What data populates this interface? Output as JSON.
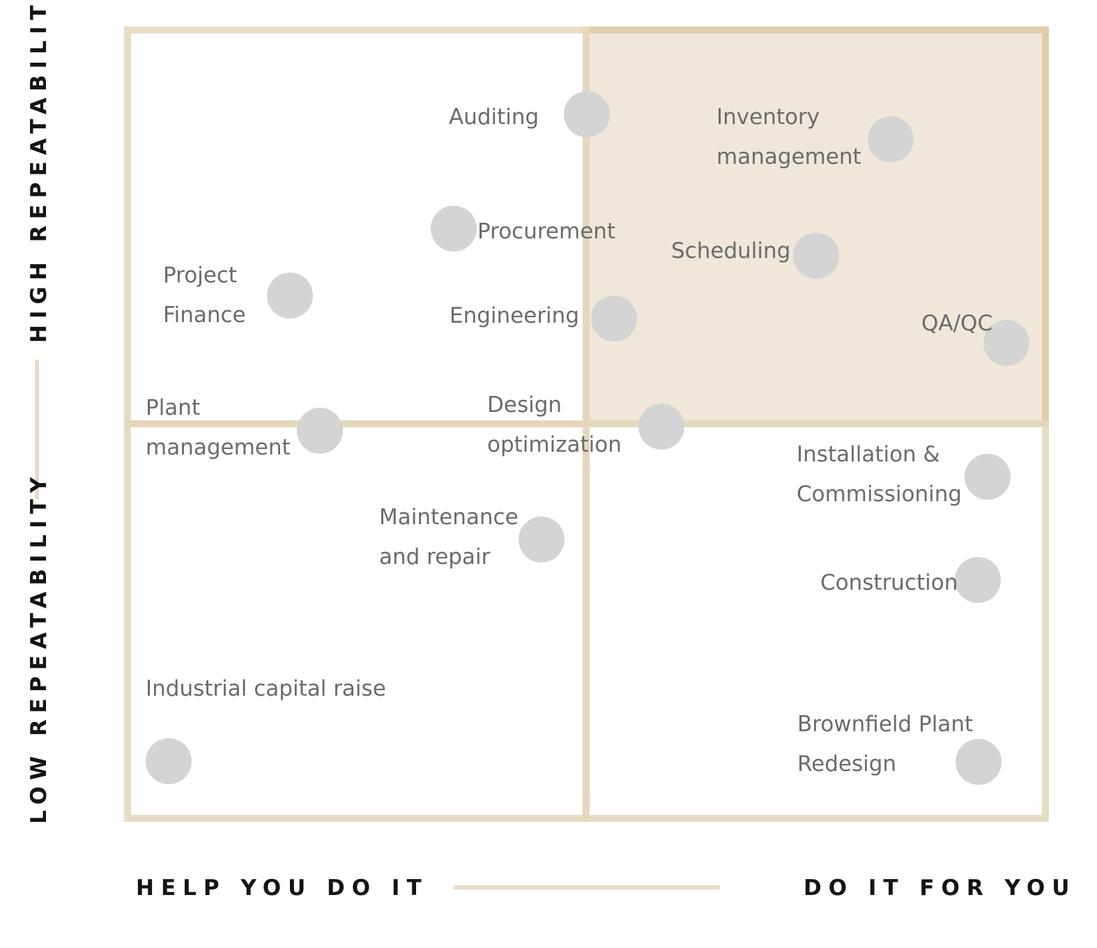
{
  "axes": {
    "y_high": "HIGH REPEATABILITY",
    "y_low": "LOW REPEATABILITY",
    "x_left": "HELP YOU DO IT",
    "x_right": "DO IT FOR YOU"
  },
  "colors": {
    "frame": "#e8dcc4",
    "highlight_quadrant": "#f0e7da",
    "dot": "#d4d4d4",
    "label_text": "#6b6b6b",
    "axis_text": "#141414"
  },
  "items": [
    {
      "label": "Auditing"
    },
    {
      "label": "Inventory management",
      "lines": [
        "Inventory",
        "management"
      ]
    },
    {
      "label": "Procurement"
    },
    {
      "label": "Project Finance",
      "lines": [
        "Project",
        "Finance"
      ]
    },
    {
      "label": "Scheduling"
    },
    {
      "label": "Engineering"
    },
    {
      "label": "QA/QC"
    },
    {
      "label": "Plant management",
      "lines": [
        "Plant",
        "management"
      ]
    },
    {
      "label": "Design optimization",
      "lines": [
        "Design",
        "optimization"
      ]
    },
    {
      "label": "Installation & Commissioning",
      "lines": [
        "Installation &",
        "Commissioning"
      ]
    },
    {
      "label": "Maintenance and repair",
      "lines": [
        "Maintenance",
        "and repair"
      ]
    },
    {
      "label": "Construction"
    },
    {
      "label": "Industrial capital raise"
    },
    {
      "label": "Brownfield Plant Redesign",
      "lines": [
        "Brownfield Plant",
        "Redesign"
      ]
    }
  ]
}
